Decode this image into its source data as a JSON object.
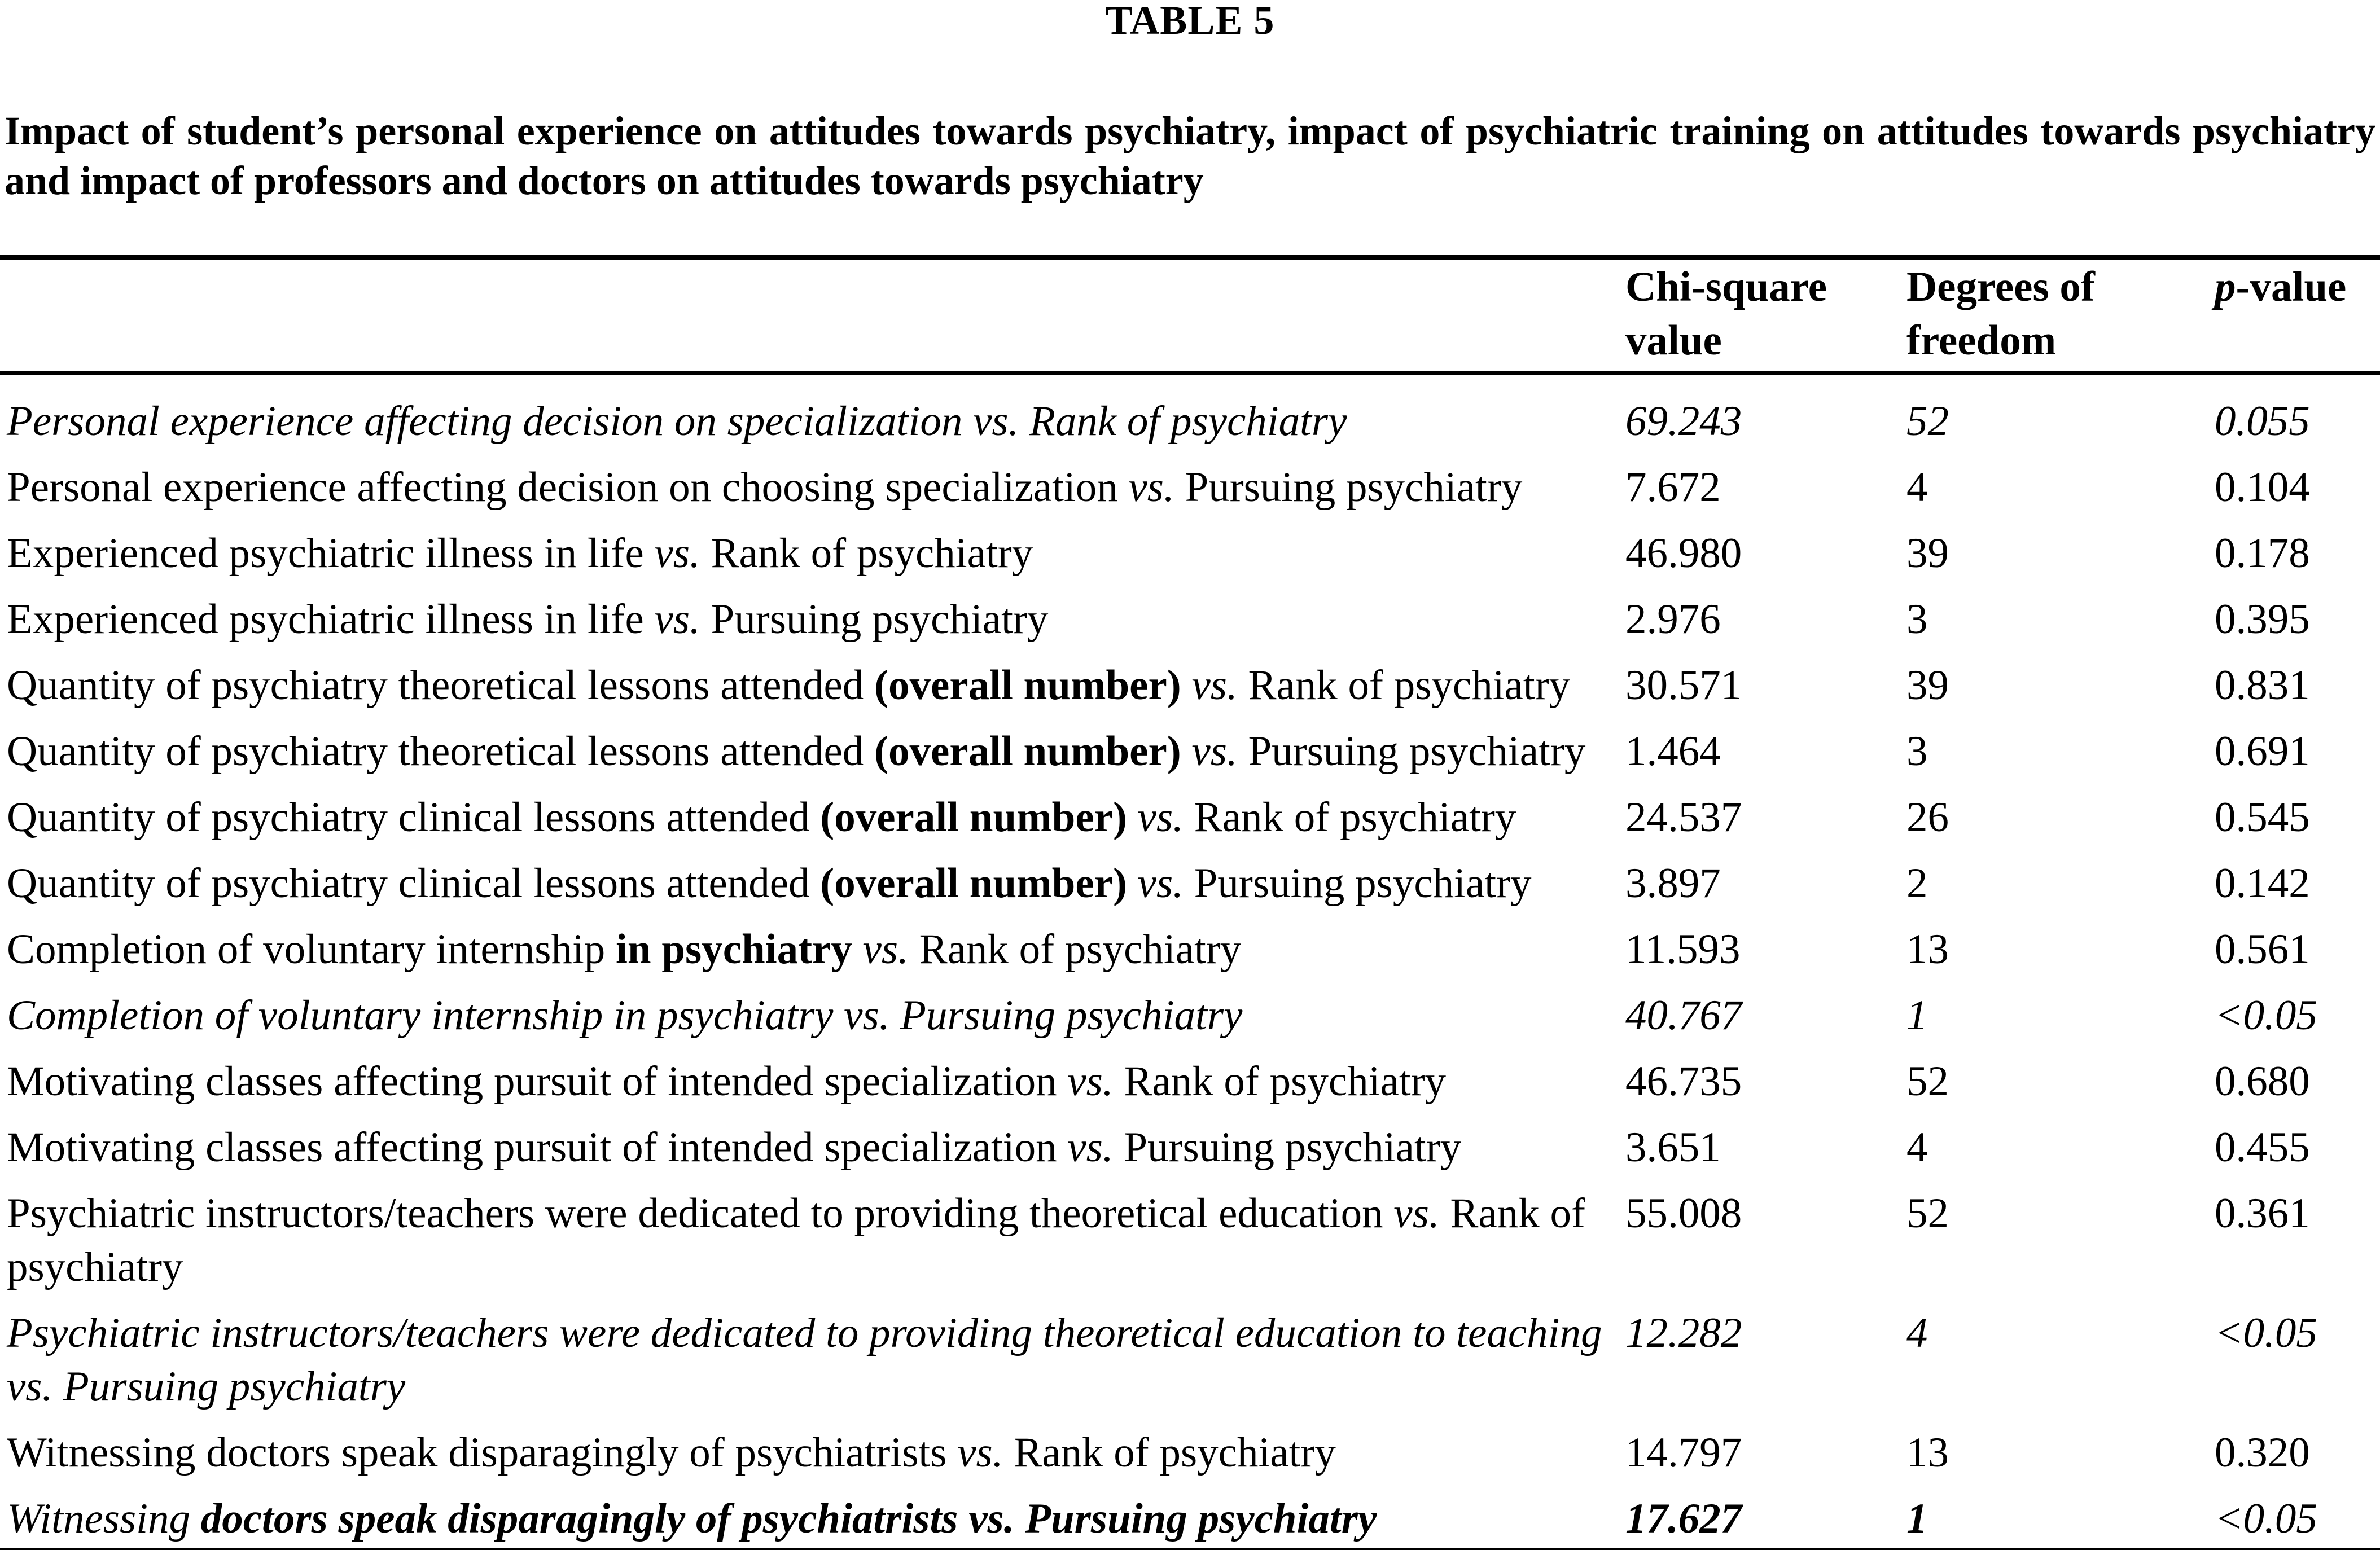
{
  "page": {
    "table_number": "TABLE 5",
    "caption": "Impact of student’s personal experience on attitudes towards psychiatry, impact of psychiatric training on attitudes towards psychiatry and impact of professors and doctors on attitudes towards psychiatry"
  },
  "colors": {
    "text": "#000000",
    "background": "#ffffff",
    "rule": "#000000"
  },
  "table": {
    "header": {
      "chi_line1": "Chi-square",
      "chi_line2": "value",
      "df_line1": "Degrees of",
      "df_line2": "freedom",
      "p_italic": "p",
      "p_rest": "-value"
    },
    "rows": [
      {
        "label": [
          {
            "text": "Personal experience affecting decision on specialization vs. Rank of psychiatry",
            "style": "italic"
          }
        ],
        "chi": {
          "text": "69.243",
          "style": "italic"
        },
        "df": {
          "text": "52",
          "style": "italic"
        },
        "p": {
          "text": "0.055",
          "style": "italic"
        }
      },
      {
        "label": [
          {
            "text": "Personal experience affecting decision on choosing specialization ",
            "style": "regular"
          },
          {
            "text": "vs.",
            "style": "italic"
          },
          {
            "text": " Pursuing psychiatry",
            "style": "regular"
          }
        ],
        "chi": {
          "text": "7.672",
          "style": "regular"
        },
        "df": {
          "text": "4",
          "style": "regular"
        },
        "p": {
          "text": "0.104",
          "style": "regular"
        }
      },
      {
        "label": [
          {
            "text": "Experienced psychiatric illness in life ",
            "style": "regular"
          },
          {
            "text": "vs.",
            "style": "italic"
          },
          {
            "text": " Rank of psychiatry",
            "style": "regular"
          }
        ],
        "chi": {
          "text": "46.980",
          "style": "regular"
        },
        "df": {
          "text": "39",
          "style": "regular"
        },
        "p": {
          "text": "0.178",
          "style": "regular"
        }
      },
      {
        "label": [
          {
            "text": "Experienced psychiatric illness in life ",
            "style": "regular"
          },
          {
            "text": "vs.",
            "style": "italic"
          },
          {
            "text": " Pursuing psychiatry",
            "style": "regular"
          }
        ],
        "chi": {
          "text": "2.976",
          "style": "regular"
        },
        "df": {
          "text": "3",
          "style": "regular"
        },
        "p": {
          "text": "0.395",
          "style": "regular"
        }
      },
      {
        "label": [
          {
            "text": "Quantity of psychiatry theoretical lessons attended ",
            "style": "regular"
          },
          {
            "text": "(overall number)",
            "style": "bold"
          },
          {
            "text": " ",
            "style": "regular"
          },
          {
            "text": "vs.",
            "style": "italic"
          },
          {
            "text": " Rank of psychiatry",
            "style": "regular"
          }
        ],
        "chi": {
          "text": "30.571",
          "style": "regular"
        },
        "df": {
          "text": "39",
          "style": "regular"
        },
        "p": {
          "text": "0.831",
          "style": "regular"
        }
      },
      {
        "label": [
          {
            "text": "Quantity of psychiatry theoretical lessons attended ",
            "style": "regular"
          },
          {
            "text": "(overall number)",
            "style": "bold"
          },
          {
            "text": " ",
            "style": "regular"
          },
          {
            "text": "vs.",
            "style": "italic"
          },
          {
            "text": " Pursuing psychiatry",
            "style": "regular"
          }
        ],
        "chi": {
          "text": "1.464",
          "style": "regular"
        },
        "df": {
          "text": "3",
          "style": "regular"
        },
        "p": {
          "text": "0.691",
          "style": "regular"
        }
      },
      {
        "label": [
          {
            "text": "Quantity of psychiatry clinical lessons attended ",
            "style": "regular"
          },
          {
            "text": "(overall number)",
            "style": "bold"
          },
          {
            "text": " ",
            "style": "regular"
          },
          {
            "text": "vs.",
            "style": "italic"
          },
          {
            "text": " Rank of psychiatry",
            "style": "regular"
          }
        ],
        "chi": {
          "text": "24.537",
          "style": "regular"
        },
        "df": {
          "text": "26",
          "style": "regular"
        },
        "p": {
          "text": "0.545",
          "style": "regular"
        }
      },
      {
        "label": [
          {
            "text": "Quantity of psychiatry clinical lessons attended ",
            "style": "regular"
          },
          {
            "text": "(overall number)",
            "style": "bold"
          },
          {
            "text": " ",
            "style": "regular"
          },
          {
            "text": "vs.",
            "style": "italic"
          },
          {
            "text": " Pursuing psychiatry",
            "style": "regular"
          }
        ],
        "chi": {
          "text": "3.897",
          "style": "regular"
        },
        "df": {
          "text": "2",
          "style": "regular"
        },
        "p": {
          "text": "0.142",
          "style": "regular"
        }
      },
      {
        "label": [
          {
            "text": "Completion of voluntary internship ",
            "style": "regular"
          },
          {
            "text": "in psychiatry",
            "style": "bold"
          },
          {
            "text": " ",
            "style": "regular"
          },
          {
            "text": "vs.",
            "style": "italic"
          },
          {
            "text": " Rank of psychiatry",
            "style": "regular"
          }
        ],
        "chi": {
          "text": "11.593",
          "style": "regular"
        },
        "df": {
          "text": "13",
          "style": "regular"
        },
        "p": {
          "text": "0.561",
          "style": "regular"
        }
      },
      {
        "label": [
          {
            "text": "Completion of voluntary internship in psychiatry vs. Pursuing psychiatry",
            "style": "italic"
          }
        ],
        "chi": {
          "text": "40.767",
          "style": "italic"
        },
        "df": {
          "text": "1",
          "style": "italic"
        },
        "p": {
          "text": "<0.05",
          "style": "italic"
        }
      },
      {
        "label": [
          {
            "text": "Motivating classes affecting pursuit of intended specialization ",
            "style": "regular"
          },
          {
            "text": "vs.",
            "style": "italic"
          },
          {
            "text": " Rank of psychiatry",
            "style": "regular"
          }
        ],
        "chi": {
          "text": "46.735",
          "style": "regular"
        },
        "df": {
          "text": "52",
          "style": "regular"
        },
        "p": {
          "text": "0.680",
          "style": "regular"
        }
      },
      {
        "label": [
          {
            "text": "Motivating classes affecting pursuit of intended specialization ",
            "style": "regular"
          },
          {
            "text": "vs.",
            "style": "italic"
          },
          {
            "text": " Pursuing psychiatry",
            "style": "regular"
          }
        ],
        "chi": {
          "text": "3.651",
          "style": "regular"
        },
        "df": {
          "text": "4",
          "style": "regular"
        },
        "p": {
          "text": "0.455",
          "style": "regular"
        }
      },
      {
        "label": [
          {
            "text": "Psychiatric instructors/teachers were dedicated to providing theoretical education ",
            "style": "regular"
          },
          {
            "text": "vs.",
            "style": "italic"
          },
          {
            "text": " Rank of psychiatry",
            "style": "regular"
          }
        ],
        "chi": {
          "text": "55.008",
          "style": "regular"
        },
        "df": {
          "text": "52",
          "style": "regular"
        },
        "p": {
          "text": "0.361",
          "style": "regular"
        }
      },
      {
        "label": [
          {
            "text": "Psychiatric instructors/teachers were dedicated to providing theoretical education to teaching vs. Pursuing psychiatry",
            "style": "italic"
          }
        ],
        "chi": {
          "text": "12.282",
          "style": "italic"
        },
        "df": {
          "text": "4",
          "style": "italic"
        },
        "p": {
          "text": "<0.05",
          "style": "italic"
        }
      },
      {
        "label": [
          {
            "text": "Witnessing doctors speak disparagingly of psychiatrists ",
            "style": "regular"
          },
          {
            "text": "vs.",
            "style": "italic"
          },
          {
            "text": " Rank of psychiatry",
            "style": "regular"
          }
        ],
        "chi": {
          "text": "14.797",
          "style": "regular"
        },
        "df": {
          "text": "13",
          "style": "regular"
        },
        "p": {
          "text": "0.320",
          "style": "regular"
        }
      },
      {
        "label": [
          {
            "text": "Witnessing ",
            "style": "italic"
          },
          {
            "text": "doctors speak disparagingly of psychiatrists vs. Pursuing psychiatry",
            "style": "bold-italic"
          }
        ],
        "chi": {
          "text": "17.627",
          "style": "bold-italic"
        },
        "df": {
          "text": "1",
          "style": "bold-italic"
        },
        "p": {
          "text": "<0.05",
          "style": "italic"
        }
      }
    ]
  }
}
